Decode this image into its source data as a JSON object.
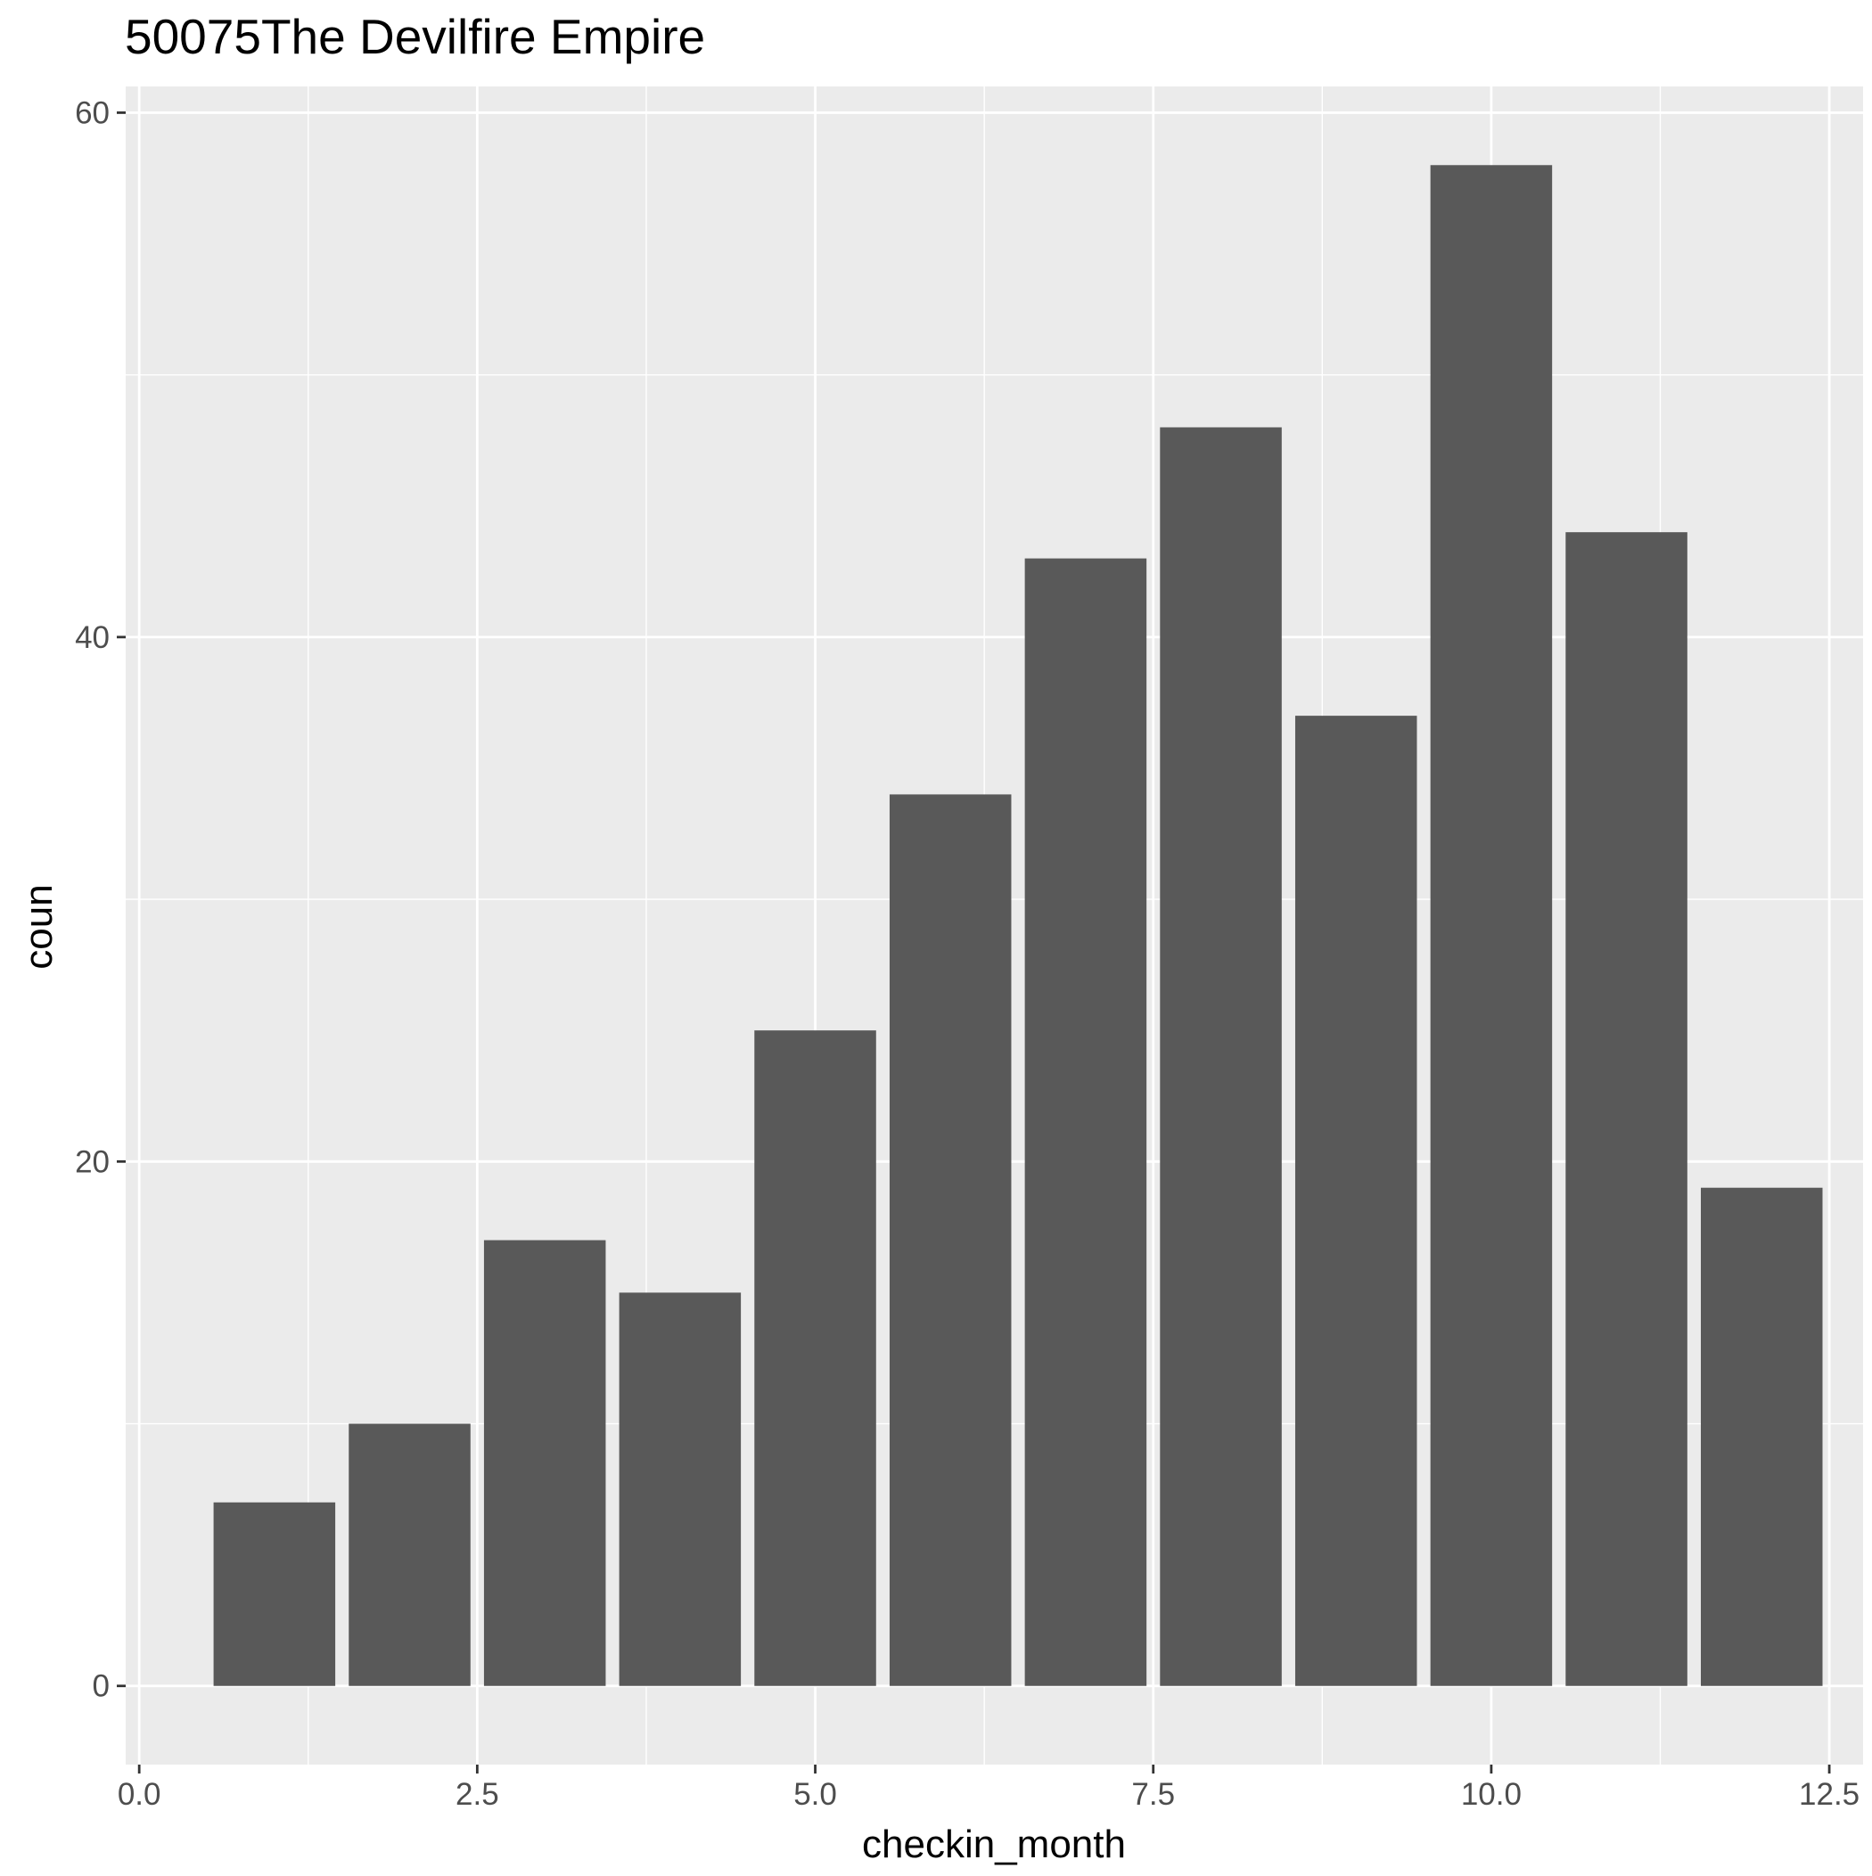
{
  "chart_data": {
    "type": "bar",
    "title": "50075The Devilfire Empire",
    "xlabel": "checkin_month",
    "ylabel": "coun",
    "x": [
      1,
      2,
      3,
      4,
      5,
      6,
      7,
      8,
      9,
      10,
      11,
      12
    ],
    "values": [
      7,
      10,
      17,
      15,
      25,
      34,
      43,
      48,
      37,
      58,
      44,
      19
    ],
    "xlim": [
      -0.1,
      12.75
    ],
    "ylim": [
      -3,
      61
    ],
    "x_ticks": [
      0.0,
      2.5,
      5.0,
      7.5,
      10.0,
      12.5
    ],
    "x_tick_labels": [
      "0.0",
      "2.5",
      "5.0",
      "7.5",
      "10.0",
      "12.5"
    ],
    "y_ticks": [
      0,
      20,
      40,
      60
    ],
    "y_tick_labels": [
      "0",
      "20",
      "40",
      "60"
    ],
    "bar_width": 0.9,
    "grid": true,
    "legend": "none",
    "colors": {
      "bar": "#595959",
      "panel": "#ebebeb",
      "grid": "#ffffff",
      "tick": "#333333"
    }
  }
}
